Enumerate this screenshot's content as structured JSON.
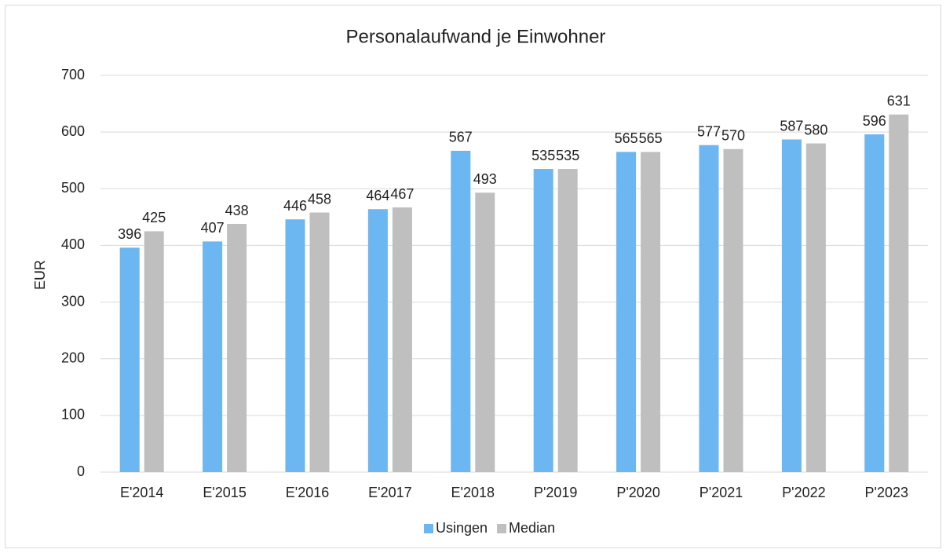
{
  "chart_data": {
    "type": "bar",
    "title": "Personalaufwand je Einwohner",
    "y_label": "EUR",
    "categories": [
      "E'2014",
      "E'2015",
      "E'2016",
      "E'2017",
      "E'2018",
      "P'2019",
      "P'2020",
      "P'2021",
      "P'2022",
      "P'2023"
    ],
    "series": [
      {
        "name": "Usingen",
        "color": "#6cb6f2",
        "values": [
          396,
          407,
          446,
          464,
          567,
          535,
          565,
          577,
          587,
          596
        ]
      },
      {
        "name": "Median",
        "color": "#bfbfbf",
        "values": [
          425,
          438,
          458,
          467,
          493,
          535,
          565,
          570,
          580,
          631
        ]
      }
    ],
    "ylim": [
      0,
      700
    ],
    "yticks": [
      0,
      100,
      200,
      300,
      400,
      500,
      600,
      700
    ],
    "grid": true,
    "legend": "bottom"
  }
}
